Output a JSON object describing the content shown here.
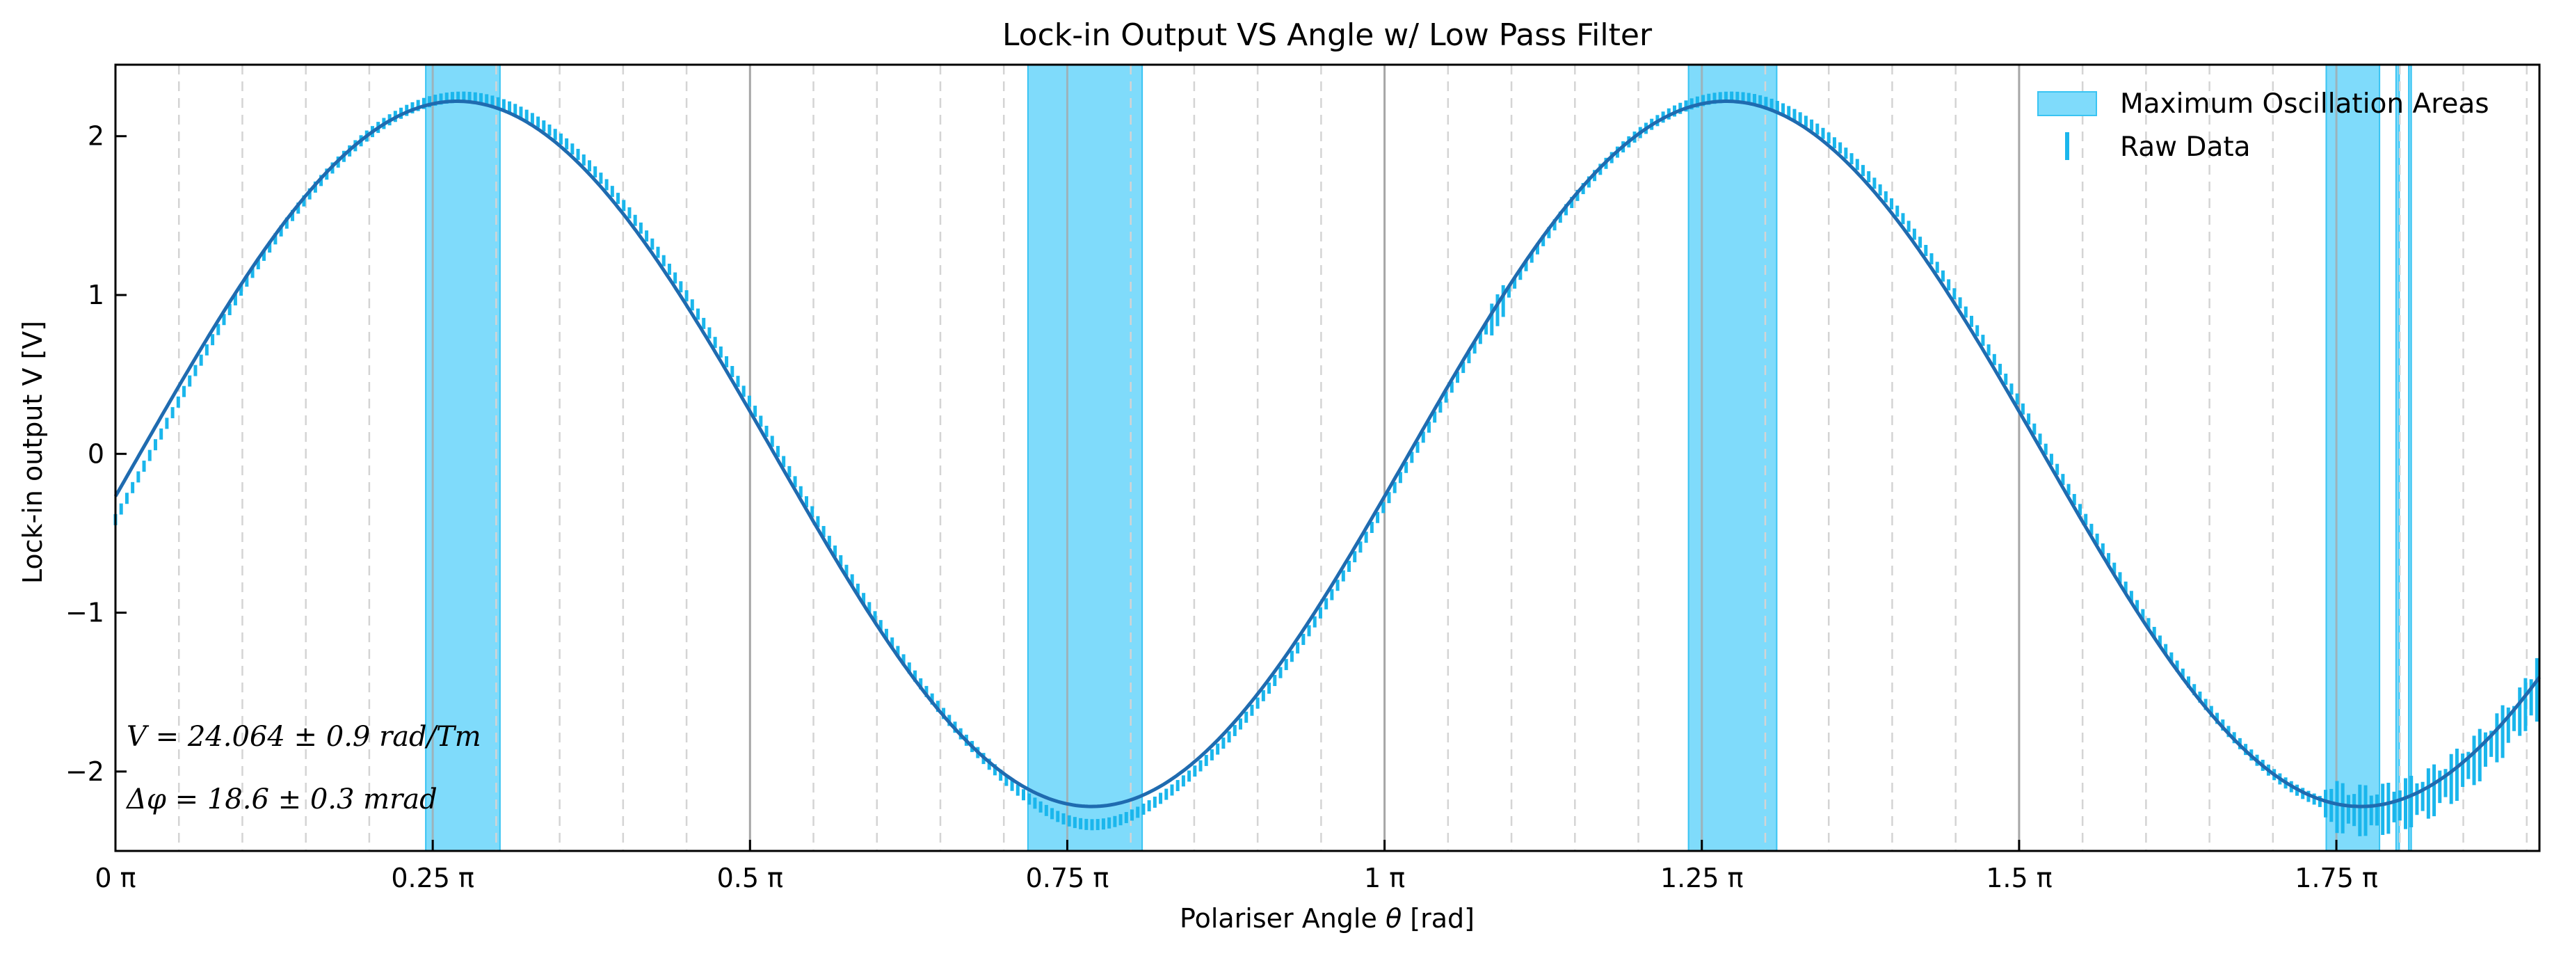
{
  "chart_data": {
    "type": "line",
    "title": "Lock-in Output VS Angle w/ Low Pass Filter",
    "xlabel": "Polariser Angle θ [rad]",
    "ylabel": "Lock-in output V [V]",
    "xlim_pi": [
      0,
      1.91
    ],
    "ylim": [
      -2.5,
      2.45
    ],
    "x_ticks": [
      {
        "value_pi": 0,
        "label": "0 π"
      },
      {
        "value_pi": 0.25,
        "label": "0.25 π"
      },
      {
        "value_pi": 0.5,
        "label": "0.5 π"
      },
      {
        "value_pi": 0.75,
        "label": "0.75 π"
      },
      {
        "value_pi": 1.0,
        "label": "1 π"
      },
      {
        "value_pi": 1.25,
        "label": "1.25 π"
      },
      {
        "value_pi": 1.5,
        "label": "1.5 π"
      },
      {
        "value_pi": 1.75,
        "label": "1.75 π"
      }
    ],
    "y_ticks": [
      {
        "value": 2,
        "label": "2"
      },
      {
        "value": 1,
        "label": "1"
      },
      {
        "value": 0,
        "label": "0"
      },
      {
        "value": -1,
        "label": "−1"
      },
      {
        "value": -2,
        "label": "−2"
      }
    ],
    "grid": {
      "major_solid_pi": [
        0.5,
        1.0,
        1.5
      ],
      "major_solid_light_pi": [
        0.25,
        0.75,
        1.25,
        1.75
      ],
      "minor_dashed_step_pi": 0.05
    },
    "fit": {
      "amplitude": 2.22,
      "frequency": 2.0,
      "phase_x_pi": 0.0192
    },
    "raw_data": {
      "name": "Raw Data",
      "color": "#1ab6ec",
      "x_start_pi": 0.0,
      "x_end_pi": 1.91,
      "step_pi": 0.0045,
      "note_values": "y values follow the fitted curve with small deviations; error bars grow near the right edge"
    },
    "shaded_regions_pi": [
      [
        0.2445,
        0.303
      ],
      [
        0.719,
        0.809
      ],
      [
        1.2395,
        1.309
      ],
      [
        1.742,
        1.784
      ],
      [
        1.797,
        1.7995
      ],
      [
        1.807,
        1.809
      ]
    ],
    "legend": {
      "placement": "top-right",
      "entries": [
        {
          "label": "Maximum Oscillation Areas",
          "kind": "patch",
          "color": "#7fdbfb"
        },
        {
          "label": "Raw Data",
          "kind": "errorbar",
          "color": "#1ab6ec"
        }
      ]
    },
    "annotations": [
      "V = 24.064 ± 0.9 rad/Tm",
      "Δφ = 18.6 ± 0.3 mrad"
    ],
    "colors": {
      "fit_line": "#1f6bb0",
      "raw_data": "#1ab6ec",
      "shade_fill": "#7fdbfb",
      "shade_edge": "#39c4f3",
      "grid_major": "#a6a6a6",
      "grid_minor": "#d4d4d4"
    }
  }
}
